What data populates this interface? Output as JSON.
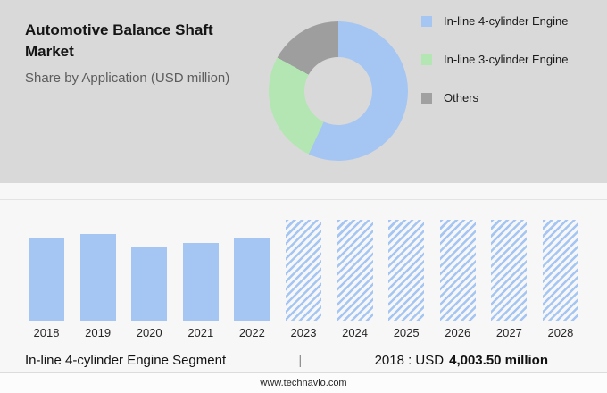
{
  "header": {
    "title": "Automotive Balance Shaft Market",
    "subtitle": "Share by Application (USD million)"
  },
  "legend": [
    {
      "label": "In-line 4-cylinder Engine",
      "color": "#a5c5f3"
    },
    {
      "label": "In-line 3-cylinder Engine",
      "color": "#b3e6b3"
    },
    {
      "label": "Others",
      "color": "#a0a0a0"
    }
  ],
  "chart_data": [
    {
      "type": "pie",
      "title": "Share by Application (USD million)",
      "labels": [
        "In-line 4-cylinder Engine",
        "In-line 3-cylinder Engine",
        "Others"
      ],
      "values": [
        57,
        26,
        17
      ],
      "colors": [
        "#a5c5f3",
        "#b3e6b3",
        "#9e9e9e"
      ],
      "donut": true,
      "legend_position": "right"
    },
    {
      "type": "bar",
      "categories": [
        "2018",
        "2019",
        "2020",
        "2021",
        "2022",
        "2023",
        "2024",
        "2025",
        "2026",
        "2027",
        "2028"
      ],
      "values": [
        4003.5,
        4180,
        3570,
        3745,
        3960,
        4880,
        4880,
        4880,
        4880,
        4880,
        4880
      ],
      "forecast": [
        false,
        false,
        false,
        false,
        false,
        true,
        true,
        true,
        true,
        true,
        true
      ],
      "bar_color": "#a5c5f3",
      "xlabel": "",
      "ylabel": "USD million",
      "ylim": [
        0,
        4880
      ],
      "grid": false,
      "note": "2023-2028 drawn as hatched forecast bars; only 2018 value labeled on screen"
    }
  ],
  "annotation": {
    "segment": "In-line 4-cylinder Engine Segment",
    "separator": "|",
    "value_prefix": "2018 : USD",
    "value_bold": "4,003.50 million"
  },
  "footer": {
    "website": "www.technavio.com"
  }
}
